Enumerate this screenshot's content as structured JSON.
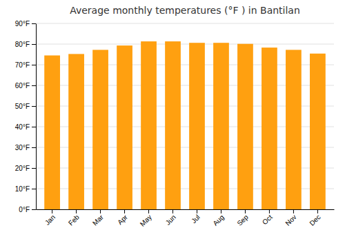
{
  "chart_data": {
    "type": "bar",
    "title": "Average monthly temperatures (°F ) in Bantilan",
    "categories": [
      "Jan",
      "Feb",
      "Mar",
      "Apr",
      "May",
      "Jun",
      "Jul",
      "Aug",
      "Sep",
      "Oct",
      "Nov",
      "Dec"
    ],
    "values": [
      74.5,
      75.2,
      77.2,
      79.3,
      81.3,
      81.3,
      80.6,
      80.6,
      80.1,
      78.3,
      77.2,
      75.4
    ],
    "color": "#FFA010",
    "ylim": [
      0,
      90
    ],
    "yticks": [
      {
        "value": 0,
        "label": "0°F"
      },
      {
        "value": 10,
        "label": "10°F"
      },
      {
        "value": 20,
        "label": "20°F"
      },
      {
        "value": 30,
        "label": "30°F"
      },
      {
        "value": 40,
        "label": "40°F"
      },
      {
        "value": 50,
        "label": "50°F"
      },
      {
        "value": 60,
        "label": "60°F"
      },
      {
        "value": 70,
        "label": "70°F"
      },
      {
        "value": 80,
        "label": "80°F"
      },
      {
        "value": 90,
        "label": "90°F"
      }
    ],
    "grid": true
  }
}
